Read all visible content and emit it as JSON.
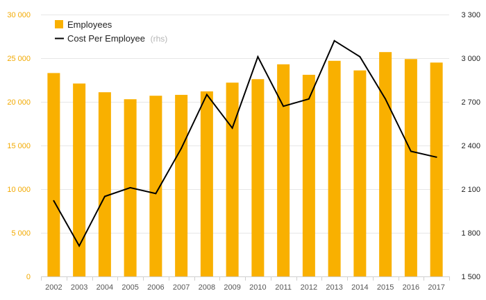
{
  "chart_data": {
    "type": "bar",
    "categories": [
      "2002",
      "2003",
      "2004",
      "2005",
      "2006",
      "2007",
      "2008",
      "2009",
      "2010",
      "2011",
      "2012",
      "2013",
      "2014",
      "2015",
      "2016",
      "2017"
    ],
    "series": [
      {
        "name": "Employees",
        "type": "bar",
        "axis": "left",
        "color": "#f9b000",
        "values": [
          23300,
          22100,
          21100,
          20300,
          20700,
          20800,
          21200,
          22200,
          22600,
          24300,
          23100,
          24700,
          23600,
          25700,
          24900,
          24500
        ]
      },
      {
        "name": "Cost Per Employee",
        "type": "line",
        "axis": "right",
        "color": "#000000",
        "values": [
          2020,
          1710,
          2050,
          2110,
          2070,
          2380,
          2750,
          2520,
          3010,
          2670,
          2720,
          3120,
          3010,
          2720,
          2360,
          2320
        ]
      }
    ],
    "y_left": {
      "ylim": [
        0,
        30000
      ],
      "ticks": [
        0,
        5000,
        10000,
        15000,
        20000,
        25000,
        30000
      ],
      "tick_labels": [
        "0",
        "5 000",
        "10 000",
        "15 000",
        "20 000",
        "25 000",
        "30 000"
      ]
    },
    "y_right": {
      "ylim": [
        1500,
        3300
      ],
      "ticks": [
        1500,
        1800,
        2100,
        2400,
        2700,
        3000,
        3300
      ],
      "tick_labels": [
        "1 500",
        "1 800",
        "2 100",
        "2 400",
        "2 700",
        "3 000",
        "3 300"
      ]
    },
    "legend": {
      "position": "top-left",
      "items": [
        {
          "label": "Employees",
          "note": ""
        },
        {
          "label": "Cost Per Employee",
          "note": "(rhs)"
        }
      ]
    },
    "grid": true,
    "colors": {
      "bar": "#f9b000",
      "line": "#000000",
      "grid": "#e6e6e6",
      "left_axis_text": "#f2a900"
    }
  }
}
